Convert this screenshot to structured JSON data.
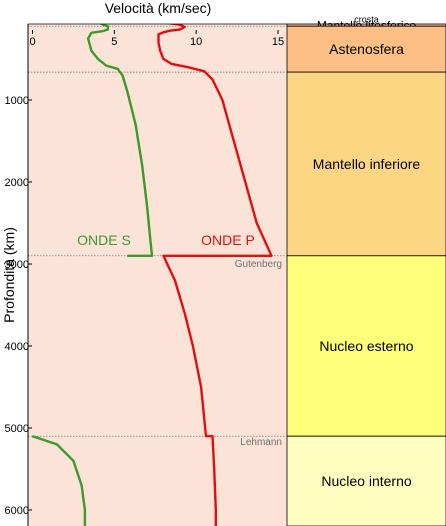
{
  "chart_data": {
    "type": "line",
    "title": "",
    "xlabel": "Velocità (km/sec)",
    "ylabel": "Profondità (km)",
    "xlim": [
      0,
      15
    ],
    "x_ticks": [
      0,
      5,
      10,
      15
    ],
    "y_ticks": [
      1000,
      2000,
      3000,
      4000,
      5000,
      6000
    ],
    "y_inverted": true,
    "grid": false,
    "background_color": "#fbe3d8",
    "series": [
      {
        "name": "ONDE P",
        "color": "#e01010",
        "points": [
          {
            "v": 6.0,
            "d": -70
          },
          {
            "v": 6.0,
            "d": 0
          },
          {
            "v": 6.5,
            "d": 20
          },
          {
            "v": 7.2,
            "d": 40
          },
          {
            "v": 8.2,
            "d": 60
          },
          {
            "v": 9.0,
            "d": 80
          },
          {
            "v": 9.3,
            "d": 110
          },
          {
            "v": 9.0,
            "d": 140
          },
          {
            "v": 8.4,
            "d": 155
          },
          {
            "v": 8.0,
            "d": 175
          },
          {
            "v": 7.7,
            "d": 200
          },
          {
            "v": 7.7,
            "d": 300
          },
          {
            "v": 7.8,
            "d": 400
          },
          {
            "v": 8.0,
            "d": 500
          },
          {
            "v": 8.5,
            "d": 560
          },
          {
            "v": 9.5,
            "d": 600
          },
          {
            "v": 10.5,
            "d": 650
          },
          {
            "v": 11.0,
            "d": 750
          },
          {
            "v": 11.6,
            "d": 1000
          },
          {
            "v": 12.3,
            "d": 1500
          },
          {
            "v": 13.0,
            "d": 2000
          },
          {
            "v": 13.7,
            "d": 2500
          },
          {
            "v": 14.6,
            "d": 2900
          },
          {
            "v": 8.0,
            "d": 2900
          },
          {
            "v": 8.7,
            "d": 3200
          },
          {
            "v": 9.3,
            "d": 3600
          },
          {
            "v": 9.8,
            "d": 4000
          },
          {
            "v": 10.3,
            "d": 4500
          },
          {
            "v": 10.6,
            "d": 5100
          },
          {
            "v": 11.0,
            "d": 5100
          },
          {
            "v": 11.1,
            "d": 5500
          },
          {
            "v": 11.2,
            "d": 6000
          },
          {
            "v": 11.2,
            "d": 6200
          }
        ]
      },
      {
        "name": "ONDE S",
        "color": "#3a9a2c",
        "segments": [
          [
            {
              "v": 4.0,
              "d": -70
            },
            {
              "v": 4.0,
              "d": 50
            },
            {
              "v": 4.3,
              "d": 80
            },
            {
              "v": 4.6,
              "d": 100
            },
            {
              "v": 4.6,
              "d": 140
            },
            {
              "v": 4.3,
              "d": 160
            },
            {
              "v": 3.6,
              "d": 180
            },
            {
              "v": 3.4,
              "d": 250
            },
            {
              "v": 3.6,
              "d": 400
            },
            {
              "v": 4.0,
              "d": 500
            },
            {
              "v": 4.5,
              "d": 580
            },
            {
              "v": 5.2,
              "d": 620
            },
            {
              "v": 5.5,
              "d": 700
            },
            {
              "v": 5.8,
              "d": 900
            },
            {
              "v": 6.3,
              "d": 1300
            },
            {
              "v": 6.7,
              "d": 1800
            },
            {
              "v": 7.0,
              "d": 2300
            },
            {
              "v": 7.2,
              "d": 2700
            },
            {
              "v": 7.3,
              "d": 2900
            },
            {
              "v": 5.8,
              "d": 2900
            }
          ],
          [
            {
              "v": 0,
              "d": 5100
            },
            {
              "v": 1.5,
              "d": 5200
            },
            {
              "v": 2.5,
              "d": 5400
            },
            {
              "v": 3.0,
              "d": 5700
            },
            {
              "v": 3.2,
              "d": 6000
            },
            {
              "v": 3.2,
              "d": 6200
            }
          ]
        ]
      }
    ],
    "annotations": [
      {
        "text": "ONDE S",
        "series": "ONDE S"
      },
      {
        "text": "ONDE P",
        "series": "ONDE P"
      },
      {
        "text": "Gutenberg",
        "depth": 2900
      },
      {
        "text": "Lehmann",
        "depth": 5100
      }
    ],
    "layers": [
      {
        "name": "crosta",
        "top": -85,
        "bottom": -40,
        "color": "#a08e14",
        "text_color": "#ffffff",
        "font_size": 9
      },
      {
        "name": "Mantello litosferico",
        "top": -40,
        "bottom": 100,
        "color": "#f9bba3",
        "text_color": "#000000",
        "font_size": 12
      },
      {
        "name": "Astenosfera",
        "top": 100,
        "bottom": 660,
        "color": "#fdbf84",
        "text_color": "#000000",
        "font_size": 14
      },
      {
        "name": "Mantello inferiore",
        "top": 660,
        "bottom": 2900,
        "color": "#fdd684",
        "text_color": "#000000",
        "font_size": 14
      },
      {
        "name": "Nucleo esterno",
        "top": 2900,
        "bottom": 5100,
        "color": "#fefe7a",
        "text_color": "#000000",
        "font_size": 14
      },
      {
        "name": "Nucleo interno",
        "top": 5100,
        "bottom": 6400,
        "color": "#fefdc0",
        "text_color": "#000000",
        "font_size": 14
      }
    ]
  }
}
